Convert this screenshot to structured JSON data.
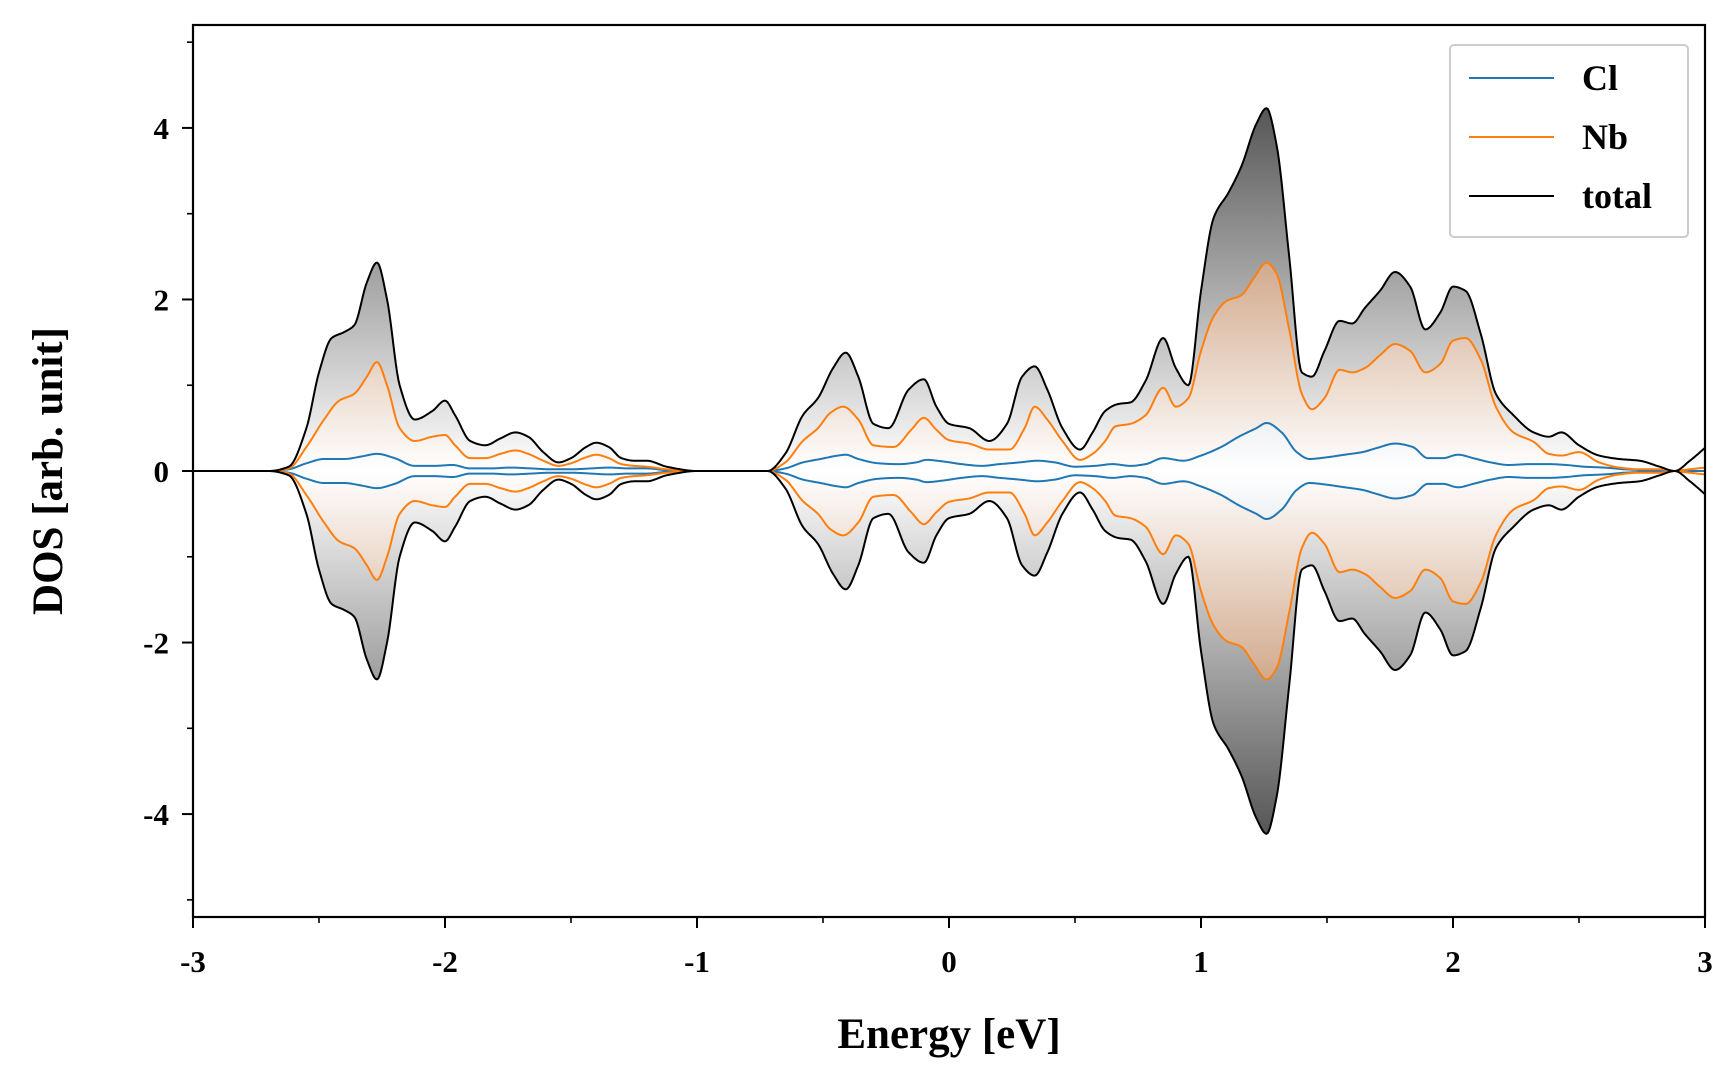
{
  "chart_data": {
    "type": "line",
    "title": "",
    "xlabel": "Energy [eV]",
    "ylabel": "DOS [arb. unit]",
    "xlim": [
      -3,
      3
    ],
    "ylim": [
      -5.2,
      5.2
    ],
    "x_ticks": [
      -3,
      -2,
      -1,
      0,
      1,
      2,
      3
    ],
    "x_tick_labels": [
      "-3",
      "-2",
      "-1",
      "0",
      "1",
      "2",
      "3"
    ],
    "y_ticks": [
      -4,
      -2,
      0,
      2,
      4
    ],
    "y_tick_labels": [
      "-4",
      "-2",
      "0",
      "2",
      "4"
    ],
    "grid": false,
    "legend_position": "top-right",
    "spin_mirrored": true,
    "fill_between_curves": true,
    "series": [
      {
        "name": "Cl",
        "color": "#1f77b4",
        "x": [
          -3.0,
          -2.7,
          -2.62,
          -2.55,
          -2.48,
          -2.4,
          -2.33,
          -2.27,
          -2.2,
          -2.12,
          -2.04,
          -1.97,
          -1.9,
          -1.82,
          -1.74,
          -1.66,
          -1.58,
          -1.5,
          -1.42,
          -1.35,
          -1.27,
          -1.2,
          -1.12,
          -1.0,
          -0.72,
          -0.65,
          -0.58,
          -0.51,
          -0.44,
          -0.41,
          -0.36,
          -0.28,
          -0.2,
          -0.13,
          -0.09,
          -0.02,
          0.05,
          0.13,
          0.2,
          0.28,
          0.35,
          0.42,
          0.5,
          0.58,
          0.65,
          0.72,
          0.78,
          0.85,
          0.93,
          1.0,
          1.08,
          1.15,
          1.22,
          1.26,
          1.32,
          1.38,
          1.43,
          1.5,
          1.57,
          1.64,
          1.7,
          1.77,
          1.84,
          1.9,
          1.96,
          2.02,
          2.08,
          2.15,
          2.22,
          2.3,
          2.38,
          2.45,
          2.52,
          2.6,
          2.68,
          2.75,
          2.82,
          2.9,
          2.96,
          3.0
        ],
        "values": [
          0.0,
          0.0,
          0.02,
          0.09,
          0.14,
          0.14,
          0.17,
          0.2,
          0.15,
          0.06,
          0.06,
          0.07,
          0.03,
          0.03,
          0.04,
          0.03,
          0.02,
          0.02,
          0.03,
          0.04,
          0.03,
          0.03,
          0.01,
          0.0,
          0.0,
          0.03,
          0.1,
          0.14,
          0.18,
          0.19,
          0.14,
          0.09,
          0.08,
          0.1,
          0.13,
          0.11,
          0.08,
          0.06,
          0.08,
          0.1,
          0.12,
          0.1,
          0.05,
          0.06,
          0.08,
          0.06,
          0.08,
          0.15,
          0.12,
          0.18,
          0.28,
          0.4,
          0.5,
          0.56,
          0.45,
          0.22,
          0.14,
          0.16,
          0.19,
          0.22,
          0.27,
          0.32,
          0.28,
          0.15,
          0.15,
          0.19,
          0.15,
          0.1,
          0.07,
          0.08,
          0.08,
          0.07,
          0.05,
          0.04,
          0.02,
          0.01,
          0.0,
          0.0,
          0.0,
          0.0
        ]
      },
      {
        "name": "Nb",
        "color": "#ff7f0e",
        "x": [
          -3.0,
          -2.7,
          -2.62,
          -2.55,
          -2.48,
          -2.42,
          -2.36,
          -2.31,
          -2.27,
          -2.23,
          -2.18,
          -2.12,
          -2.05,
          -2.0,
          -1.96,
          -1.9,
          -1.84,
          -1.78,
          -1.72,
          -1.67,
          -1.61,
          -1.55,
          -1.5,
          -1.44,
          -1.4,
          -1.35,
          -1.3,
          -1.25,
          -1.2,
          -1.12,
          -1.0,
          -0.72,
          -0.65,
          -0.58,
          -0.52,
          -0.47,
          -0.42,
          -0.36,
          -0.3,
          -0.22,
          -0.15,
          -0.1,
          -0.05,
          0.0,
          0.08,
          0.16,
          0.24,
          0.3,
          0.34,
          0.39,
          0.45,
          0.52,
          0.57,
          0.62,
          0.66,
          0.72,
          0.78,
          0.85,
          0.9,
          0.95,
          1.0,
          1.05,
          1.1,
          1.16,
          1.21,
          1.26,
          1.3,
          1.35,
          1.4,
          1.44,
          1.49,
          1.55,
          1.6,
          1.65,
          1.71,
          1.77,
          1.83,
          1.89,
          1.95,
          2.0,
          2.05,
          2.11,
          2.17,
          2.24,
          2.32,
          2.38,
          2.43,
          2.5,
          2.58,
          2.66,
          2.74,
          2.82,
          2.88,
          2.94,
          3.0
        ],
        "values": [
          0.0,
          0.0,
          0.03,
          0.28,
          0.6,
          0.82,
          0.9,
          1.1,
          1.27,
          1.0,
          0.5,
          0.35,
          0.4,
          0.42,
          0.3,
          0.15,
          0.15,
          0.2,
          0.24,
          0.2,
          0.12,
          0.06,
          0.09,
          0.16,
          0.19,
          0.15,
          0.08,
          0.06,
          0.05,
          0.02,
          0.0,
          0.0,
          0.1,
          0.35,
          0.5,
          0.68,
          0.75,
          0.6,
          0.3,
          0.28,
          0.48,
          0.62,
          0.48,
          0.36,
          0.32,
          0.25,
          0.25,
          0.5,
          0.75,
          0.6,
          0.35,
          0.13,
          0.2,
          0.35,
          0.52,
          0.55,
          0.65,
          0.97,
          0.75,
          0.85,
          1.4,
          1.8,
          1.98,
          2.05,
          2.25,
          2.43,
          2.3,
          1.65,
          0.9,
          0.72,
          0.85,
          1.18,
          1.15,
          1.2,
          1.35,
          1.48,
          1.4,
          1.15,
          1.25,
          1.52,
          1.55,
          1.3,
          0.75,
          0.45,
          0.34,
          0.2,
          0.18,
          0.22,
          0.1,
          0.04,
          0.02,
          0.02,
          0.0,
          -0.02,
          -0.04
        ]
      },
      {
        "name": "total",
        "color": "#000000",
        "x": [
          -3.0,
          -2.7,
          -2.62,
          -2.55,
          -2.5,
          -2.45,
          -2.4,
          -2.36,
          -2.31,
          -2.27,
          -2.23,
          -2.18,
          -2.12,
          -2.05,
          -2.0,
          -1.96,
          -1.9,
          -1.84,
          -1.78,
          -1.72,
          -1.67,
          -1.61,
          -1.55,
          -1.5,
          -1.44,
          -1.4,
          -1.35,
          -1.3,
          -1.25,
          -1.2,
          -1.12,
          -1.0,
          -0.72,
          -0.65,
          -0.58,
          -0.52,
          -0.46,
          -0.41,
          -0.36,
          -0.3,
          -0.24,
          -0.16,
          -0.1,
          -0.05,
          0.0,
          0.08,
          0.16,
          0.23,
          0.29,
          0.34,
          0.39,
          0.45,
          0.52,
          0.57,
          0.62,
          0.67,
          0.72,
          0.78,
          0.85,
          0.9,
          0.95,
          1.0,
          1.05,
          1.11,
          1.16,
          1.22,
          1.26,
          1.3,
          1.35,
          1.4,
          1.44,
          1.49,
          1.55,
          1.6,
          1.65,
          1.71,
          1.77,
          1.83,
          1.89,
          1.95,
          2.0,
          2.05,
          2.11,
          2.17,
          2.24,
          2.32,
          2.38,
          2.43,
          2.5,
          2.58,
          2.66,
          2.74,
          2.82,
          2.88,
          2.94,
          3.0
        ],
        "values": [
          0.0,
          0.0,
          0.05,
          0.5,
          1.15,
          1.55,
          1.62,
          1.7,
          2.2,
          2.43,
          2.0,
          1.0,
          0.6,
          0.7,
          0.82,
          0.65,
          0.35,
          0.3,
          0.38,
          0.45,
          0.4,
          0.22,
          0.1,
          0.15,
          0.28,
          0.33,
          0.28,
          0.15,
          0.12,
          0.12,
          0.05,
          0.0,
          0.0,
          0.2,
          0.65,
          0.85,
          1.2,
          1.38,
          1.1,
          0.55,
          0.5,
          0.95,
          1.07,
          0.75,
          0.55,
          0.5,
          0.35,
          0.55,
          1.1,
          1.22,
          0.95,
          0.5,
          0.25,
          0.45,
          0.7,
          0.78,
          0.8,
          1.05,
          1.55,
          1.2,
          1.0,
          2.1,
          2.95,
          3.25,
          3.55,
          4.05,
          4.23,
          3.8,
          2.5,
          1.15,
          1.1,
          1.4,
          1.75,
          1.72,
          1.9,
          2.1,
          2.32,
          2.15,
          1.65,
          1.85,
          2.15,
          2.1,
          1.6,
          0.9,
          0.65,
          0.45,
          0.4,
          0.45,
          0.3,
          0.18,
          0.14,
          0.12,
          0.05,
          0.0,
          0.12,
          0.27
        ]
      }
    ],
    "fills": [
      {
        "between": [
          "total",
          "Nb"
        ],
        "colors": [
          "#ffffff",
          "#555555"
        ]
      },
      {
        "between": [
          "Nb",
          "Cl"
        ],
        "colors": [
          "#ffffff",
          "#b06a38"
        ]
      },
      {
        "between": [
          "Cl",
          "zero"
        ],
        "colors": [
          "#ffffff",
          "#7f8fa6"
        ]
      }
    ],
    "axes_color": "#000000",
    "background": "#ffffff"
  }
}
